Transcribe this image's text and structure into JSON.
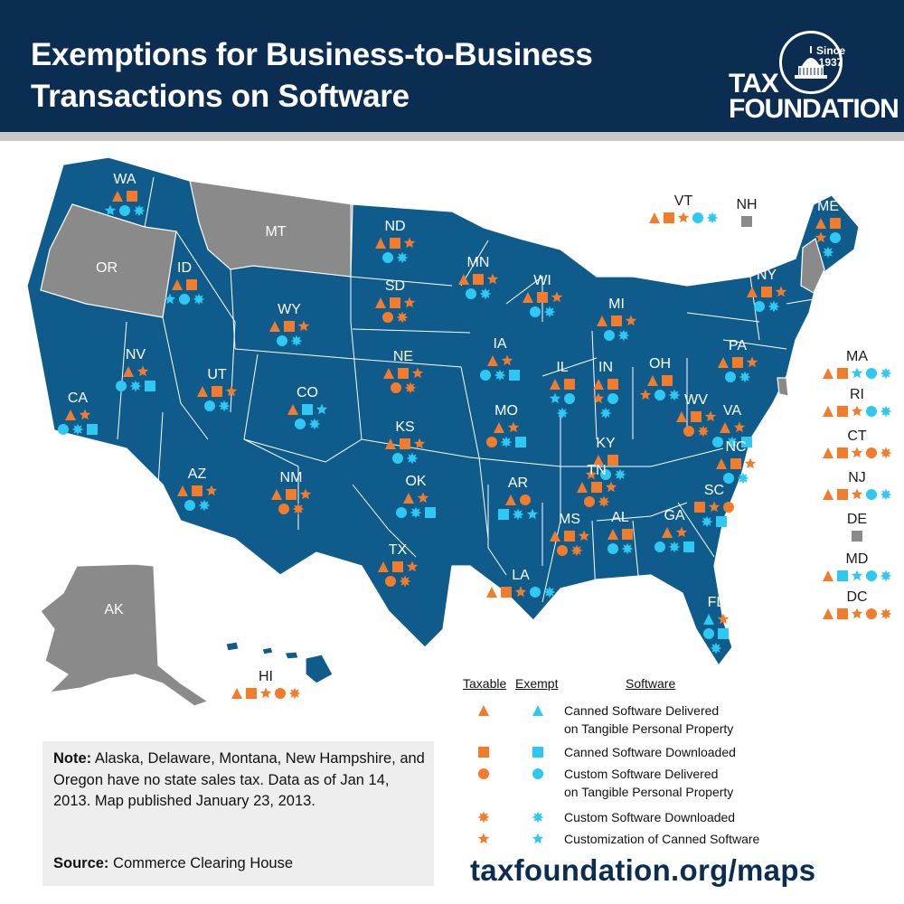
{
  "header": {
    "title": "Exemptions for Business-to-Business\nTransactions on Software",
    "logo_line1": "TAX",
    "logo_line2": "FOUNDATION",
    "logo_since": "Since 1937"
  },
  "colors": {
    "header_bg": "#0c2d52",
    "state_fill": "#0f5c8c",
    "no_tax_fill": "#8a8a8a",
    "taxable": "#f47b2a",
    "exempt": "#2ec9f2"
  },
  "legend": {
    "col_taxable": "Taxable",
    "col_exempt": "Exempt",
    "col_software": "Software",
    "items": [
      {
        "shape": "triangle",
        "label": "Canned Software Delivered\non Tangible Personal Property"
      },
      {
        "shape": "square",
        "label": "Canned Software Downloaded"
      },
      {
        "shape": "circle",
        "label": "Custom Software Delivered\non Tangible Personal Property"
      },
      {
        "shape": "burst",
        "label": "Custom Software Downloaded"
      },
      {
        "shape": "star",
        "label": "Customization of Canned Software"
      }
    ]
  },
  "note": {
    "label": "Note:",
    "text": " Alaska, Delaware, Montana, New Hampshire, and Oregon have no state sales tax. Data as of Jan 14, 2013. Map published January 23, 2013.",
    "source_label": "Source:",
    "source": " Commerce Clearing House"
  },
  "url": "taxfoundation.org/maps",
  "states": [
    {
      "abbr": "WA",
      "status": "tax",
      "rows": [
        [
          "tri:t",
          "sq:t"
        ],
        [
          "star:e",
          "cir:e",
          "burst:e"
        ]
      ]
    },
    {
      "abbr": "OR",
      "status": "none",
      "rows": []
    },
    {
      "abbr": "ID",
      "status": "tax",
      "rows": [
        [
          "tri:t",
          "sq:t"
        ],
        [
          "star:e",
          "cir:e",
          "burst:e"
        ]
      ]
    },
    {
      "abbr": "MT",
      "status": "none",
      "rows": []
    },
    {
      "abbr": "WY",
      "status": "tax",
      "rows": [
        [
          "tri:t",
          "sq:t",
          "star:t"
        ],
        [
          "cir:e",
          "burst:e"
        ]
      ]
    },
    {
      "abbr": "ND",
      "status": "tax",
      "rows": [
        [
          "tri:t",
          "sq:t",
          "star:t"
        ],
        [
          "cir:e",
          "burst:e"
        ]
      ]
    },
    {
      "abbr": "SD",
      "status": "tax",
      "rows": [
        [
          "tri:t",
          "sq:t",
          "star:t"
        ],
        [
          "cir:t",
          "burst:t"
        ]
      ]
    },
    {
      "abbr": "MN",
      "status": "tax",
      "rows": [
        [
          "tri:t",
          "sq:t",
          "star:t"
        ],
        [
          "cir:e",
          "burst:e"
        ]
      ]
    },
    {
      "abbr": "WI",
      "status": "tax",
      "rows": [
        [
          "tri:t",
          "sq:t",
          "star:t"
        ],
        [
          "cir:e",
          "burst:e"
        ]
      ]
    },
    {
      "abbr": "MI",
      "status": "tax",
      "rows": [
        [
          "tri:t",
          "sq:t",
          "star:t"
        ],
        [
          "cir:e",
          "burst:e"
        ]
      ]
    },
    {
      "abbr": "NY",
      "status": "tax",
      "rows": [
        [
          "tri:t",
          "sq:t",
          "star:t"
        ],
        [
          "cir:e",
          "burst:e"
        ]
      ]
    },
    {
      "abbr": "ME",
      "status": "tax",
      "rows": [
        [
          "tri:t",
          "sq:t"
        ],
        [
          "star:t",
          "cir:e"
        ],
        [
          "burst:e"
        ]
      ]
    },
    {
      "abbr": "NV",
      "status": "tax",
      "rows": [
        [
          "tri:t",
          "star:t"
        ],
        [
          "cir:e",
          "burst:e",
          "sq:e"
        ]
      ]
    },
    {
      "abbr": "UT",
      "status": "tax",
      "rows": [
        [
          "tri:t",
          "sq:t",
          "star:t"
        ],
        [
          "cir:e",
          "burst:e"
        ]
      ]
    },
    {
      "abbr": "CO",
      "status": "tax",
      "rows": [
        [
          "tri:t",
          "sq:e",
          "star:e"
        ],
        [
          "cir:e",
          "burst:e"
        ]
      ]
    },
    {
      "abbr": "NE",
      "status": "tax",
      "rows": [
        [
          "tri:t",
          "sq:t",
          "star:t"
        ],
        [
          "cir:t",
          "burst:t"
        ]
      ]
    },
    {
      "abbr": "IA",
      "status": "tax",
      "rows": [
        [
          "tri:t",
          "star:t"
        ],
        [
          "cir:e",
          "burst:e",
          "sq:e"
        ]
      ]
    },
    {
      "abbr": "IL",
      "status": "tax",
      "rows": [
        [
          "tri:t",
          "sq:t"
        ],
        [
          "star:e",
          "cir:e"
        ],
        [
          "burst:e"
        ]
      ]
    },
    {
      "abbr": "IN",
      "status": "tax",
      "rows": [
        [
          "tri:t",
          "sq:t"
        ],
        [
          "star:t",
          "cir:e"
        ],
        [
          "burst:e"
        ]
      ]
    },
    {
      "abbr": "OH",
      "status": "tax",
      "rows": [
        [
          "tri:t",
          "sq:t"
        ],
        [
          "star:t",
          "cir:e",
          "burst:e"
        ]
      ]
    },
    {
      "abbr": "PA",
      "status": "tax",
      "rows": [
        [
          "tri:t",
          "sq:t",
          "star:t"
        ],
        [
          "cir:e",
          "burst:e"
        ]
      ]
    },
    {
      "abbr": "CA",
      "status": "tax",
      "rows": [
        [
          "tri:t",
          "star:t"
        ],
        [
          "cir:e",
          "burst:e",
          "sq:e"
        ]
      ]
    },
    {
      "abbr": "AZ",
      "status": "tax",
      "rows": [
        [
          "tri:t",
          "sq:t",
          "star:t"
        ],
        [
          "cir:e",
          "burst:e"
        ]
      ]
    },
    {
      "abbr": "NM",
      "status": "tax",
      "rows": [
        [
          "tri:t",
          "sq:t",
          "star:t"
        ],
        [
          "cir:t",
          "burst:t"
        ]
      ]
    },
    {
      "abbr": "KS",
      "status": "tax",
      "rows": [
        [
          "tri:t",
          "sq:t",
          "star:t"
        ],
        [
          "cir:e",
          "burst:e"
        ]
      ]
    },
    {
      "abbr": "MO",
      "status": "tax",
      "rows": [
        [
          "tri:t",
          "star:t"
        ],
        [
          "cir:t",
          "burst:e",
          "sq:e"
        ]
      ]
    },
    {
      "abbr": "KY",
      "status": "tax",
      "rows": [
        [
          "tri:t",
          "sq:t"
        ],
        [
          "star:t",
          "cir:e",
          "burst:e"
        ]
      ]
    },
    {
      "abbr": "WV",
      "status": "tax",
      "rows": [
        [
          "tri:t",
          "sq:t",
          "star:t"
        ],
        [
          "cir:t",
          "burst:t"
        ]
      ]
    },
    {
      "abbr": "VA",
      "status": "tax",
      "rows": [
        [
          "tri:t",
          "star:t"
        ],
        [
          "cir:e",
          "burst:e",
          "sq:e"
        ]
      ]
    },
    {
      "abbr": "OK",
      "status": "tax",
      "rows": [
        [
          "tri:t",
          "star:t"
        ],
        [
          "cir:e",
          "burst:e",
          "sq:e"
        ]
      ]
    },
    {
      "abbr": "AR",
      "status": "tax",
      "rows": [
        [
          "tri:t",
          "cir:t"
        ],
        [
          "sq:e",
          "burst:e",
          "star:e"
        ]
      ]
    },
    {
      "abbr": "TN",
      "status": "tax",
      "rows": [
        [
          "tri:t",
          "sq:t",
          "star:t"
        ],
        [
          "cir:t",
          "burst:t"
        ]
      ]
    },
    {
      "abbr": "NC",
      "status": "tax",
      "rows": [
        [
          "tri:t",
          "sq:t",
          "star:t"
        ],
        [
          "cir:e",
          "burst:e"
        ]
      ]
    },
    {
      "abbr": "SC",
      "status": "tax",
      "rows": [
        [
          "sq:t",
          "star:t",
          "cir:t"
        ],
        [
          "burst:e",
          "sq:e"
        ]
      ]
    },
    {
      "abbr": "TX",
      "status": "tax",
      "rows": [
        [
          "tri:t",
          "sq:t",
          "star:t"
        ],
        [
          "cir:t",
          "burst:t"
        ]
      ]
    },
    {
      "abbr": "MS",
      "status": "tax",
      "rows": [
        [
          "tri:t",
          "sq:t",
          "star:t"
        ],
        [
          "cir:t",
          "burst:t"
        ]
      ]
    },
    {
      "abbr": "AL",
      "status": "tax",
      "rows": [
        [
          "tri:t",
          "sq:t"
        ],
        [
          "cir:e",
          "burst:e"
        ]
      ]
    },
    {
      "abbr": "GA",
      "status": "tax",
      "rows": [
        [
          "tri:t",
          "star:t"
        ],
        [
          "cir:e",
          "burst:e",
          "sq:e"
        ]
      ]
    },
    {
      "abbr": "LA",
      "status": "tax",
      "rows": [
        [
          "tri:t",
          "sq:t",
          "star:t",
          "cir:e",
          "burst:e"
        ]
      ]
    },
    {
      "abbr": "FL",
      "status": "tax",
      "rows": [
        [
          "tri:e",
          "star:t"
        ],
        [
          "cir:e",
          "sq:e"
        ],
        [
          "burst:e"
        ]
      ]
    },
    {
      "abbr": "AK",
      "status": "none",
      "rows": []
    },
    {
      "abbr": "HI",
      "status": "tax",
      "rows": [
        [
          "tri:t",
          "sq:t",
          "star:t",
          "cir:t",
          "burst:t"
        ]
      ]
    },
    {
      "abbr": "VT",
      "status": "tax",
      "rows": [
        [
          "tri:t",
          "sq:t",
          "star:t",
          "cir:e",
          "burst:e"
        ]
      ]
    },
    {
      "abbr": "NH",
      "status": "none",
      "rows": [
        [
          "sq:grey"
        ]
      ]
    },
    {
      "abbr": "MA",
      "status": "tax",
      "rows": [
        [
          "tri:t",
          "sq:t",
          "star:e",
          "cir:e",
          "burst:e"
        ]
      ]
    },
    {
      "abbr": "RI",
      "status": "tax",
      "rows": [
        [
          "tri:t",
          "sq:t",
          "star:t",
          "cir:e",
          "burst:e"
        ]
      ]
    },
    {
      "abbr": "CT",
      "status": "tax",
      "rows": [
        [
          "tri:t",
          "sq:t",
          "star:t",
          "cir:t",
          "burst:t"
        ]
      ]
    },
    {
      "abbr": "NJ",
      "status": "tax",
      "rows": [
        [
          "tri:t",
          "sq:t",
          "star:t",
          "cir:e",
          "burst:e"
        ]
      ]
    },
    {
      "abbr": "DE",
      "status": "none",
      "rows": [
        [
          "sq:grey"
        ]
      ]
    },
    {
      "abbr": "MD",
      "status": "tax",
      "rows": [
        [
          "tri:t",
          "sq:e",
          "star:e",
          "cir:e",
          "burst:e"
        ]
      ]
    },
    {
      "abbr": "DC",
      "status": "tax",
      "rows": [
        [
          "tri:t",
          "sq:t",
          "star:t",
          "cir:t",
          "burst:t"
        ]
      ]
    }
  ]
}
